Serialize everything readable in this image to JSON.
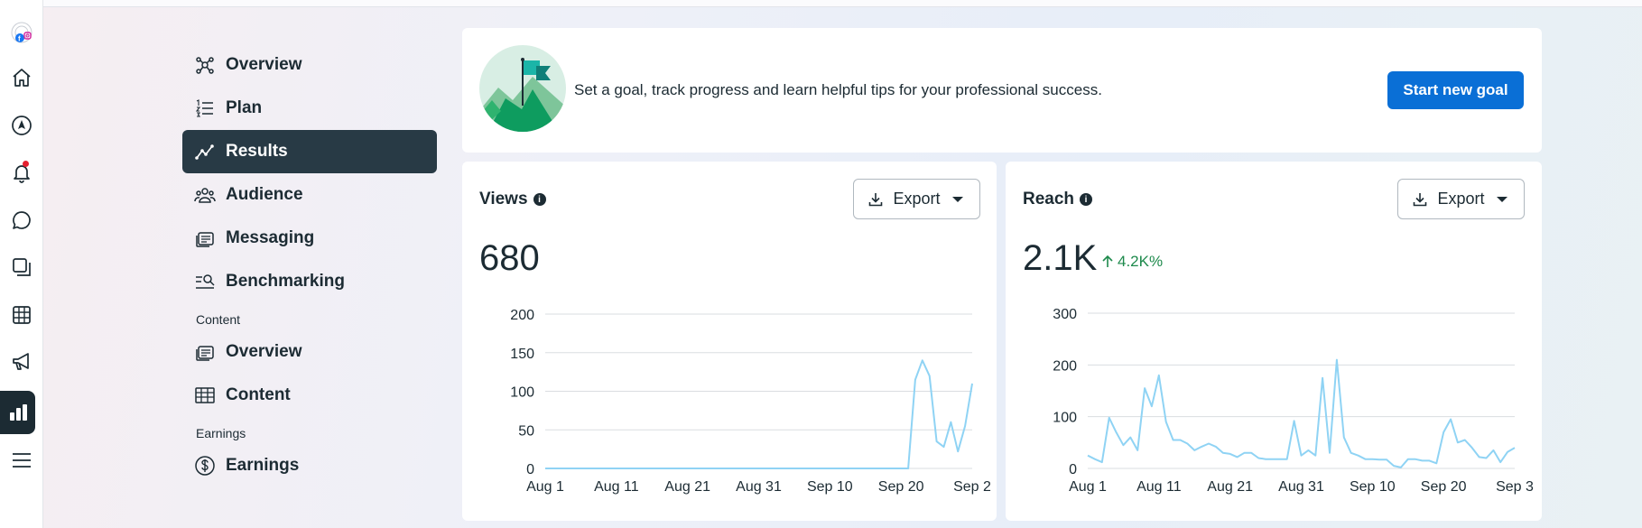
{
  "rail": {
    "icons": [
      "meta-business-logo-icon",
      "home-icon",
      "compass-icon",
      "bell-icon",
      "chat-icon",
      "pages-icon",
      "table-icon",
      "megaphone-icon",
      "bar-chart-icon",
      "menu-icon"
    ]
  },
  "nav": {
    "items": [
      {
        "label": "Overview",
        "icon": "network-icon"
      },
      {
        "label": "Plan",
        "icon": "numbered-list-icon"
      },
      {
        "label": "Results",
        "icon": "trend-line-icon",
        "active": true
      },
      {
        "label": "Audience",
        "icon": "people-icon"
      },
      {
        "label": "Messaging",
        "icon": "inbox-icon"
      },
      {
        "label": "Benchmarking",
        "icon": "search-list-icon"
      }
    ],
    "content_section": "Content",
    "content_items": [
      {
        "label": "Overview",
        "icon": "inbox-icon"
      },
      {
        "label": "Content",
        "icon": "table-icon"
      }
    ],
    "earnings_section": "Earnings",
    "earnings_items": [
      {
        "label": "Earnings",
        "icon": "dollar-circle-icon"
      }
    ]
  },
  "goal": {
    "text": "Set a goal, track progress and learn helpful tips for your professional success.",
    "button": "Start new goal",
    "illustration": "flag-mountain-icon"
  },
  "views": {
    "title": "Views",
    "info": "i",
    "export": "Export",
    "value": "680"
  },
  "reach": {
    "title": "Reach",
    "info": "i",
    "export": "Export",
    "value": "2.1K",
    "delta": "4.2K%"
  },
  "colors": {
    "accent": "#0a6fd6",
    "line": "#8fd3f4",
    "positive": "#1e8a4c",
    "active_nav": "#283a45"
  },
  "chart_data": [
    {
      "type": "line",
      "title": "Views",
      "ylim": [
        0,
        200
      ],
      "yticks": [
        0,
        50,
        100,
        150,
        200
      ],
      "xticks": [
        "Aug 1",
        "Aug 11",
        "Aug 21",
        "Aug 31",
        "Sep 10",
        "Sep 20",
        "Sep 2"
      ],
      "x_start": "Aug 1",
      "series": [
        {
          "values": [
            0,
            0,
            0,
            0,
            0,
            0,
            0,
            0,
            0,
            0,
            0,
            0,
            0,
            0,
            0,
            0,
            0,
            0,
            0,
            0,
            0,
            0,
            0,
            0,
            0,
            0,
            0,
            0,
            0,
            0,
            0,
            0,
            0,
            0,
            0,
            0,
            0,
            0,
            0,
            0,
            0,
            0,
            0,
            0,
            0,
            0,
            0,
            0,
            0,
            0,
            0,
            0,
            115,
            140,
            120,
            35,
            28,
            60,
            22,
            55,
            110
          ]
        }
      ]
    },
    {
      "type": "line",
      "title": "Reach",
      "ylim": [
        0,
        300
      ],
      "yticks": [
        0,
        100,
        200,
        300
      ],
      "xticks": [
        "Aug 1",
        "Aug 11",
        "Aug 21",
        "Aug 31",
        "Sep 10",
        "Sep 20",
        "Sep 3"
      ],
      "x_start": "Aug 1",
      "series": [
        {
          "values": [
            25,
            18,
            12,
            98,
            70,
            45,
            60,
            35,
            155,
            120,
            180,
            90,
            55,
            55,
            48,
            35,
            42,
            48,
            42,
            30,
            28,
            22,
            30,
            30,
            20,
            18,
            18,
            18,
            18,
            92,
            25,
            35,
            25,
            175,
            30,
            210,
            60,
            30,
            25,
            18,
            18,
            17,
            17,
            5,
            2,
            18,
            18,
            15,
            15,
            10,
            70,
            95,
            50,
            55,
            40,
            22,
            20,
            35,
            12,
            32,
            40
          ]
        }
      ]
    }
  ]
}
